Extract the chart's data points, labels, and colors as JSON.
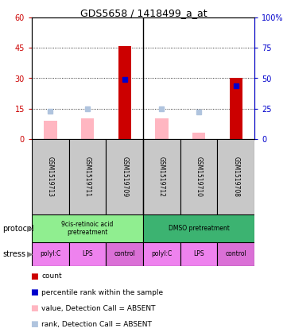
{
  "title": "GDS5658 / 1418499_a_at",
  "samples": [
    "GSM1519713",
    "GSM1519711",
    "GSM1519709",
    "GSM1519712",
    "GSM1519710",
    "GSM1519708"
  ],
  "red_bars": [
    0,
    0,
    46,
    0,
    0,
    30
  ],
  "pink_bars": [
    9,
    10,
    0,
    10,
    3,
    0
  ],
  "blue_squares_right": [
    23,
    25,
    49,
    25,
    22,
    44
  ],
  "show_dark_blue": [
    false,
    false,
    true,
    false,
    false,
    true
  ],
  "ylim_left": [
    0,
    60
  ],
  "ylim_right": [
    0,
    100
  ],
  "yticks_left": [
    0,
    15,
    30,
    45,
    60
  ],
  "yticks_right": [
    0,
    25,
    50,
    75,
    100
  ],
  "ytick_labels_left": [
    "0",
    "15",
    "30",
    "45",
    "60"
  ],
  "ytick_labels_right": [
    "0",
    "25",
    "50",
    "75",
    "100%"
  ],
  "bar_width": 0.35,
  "red_color": "#cc0000",
  "pink_color": "#ffb6c1",
  "blue_color": "#0000cc",
  "light_blue_color": "#b0c4de",
  "sample_box_color": "#c8c8c8",
  "left_axis_color": "#cc0000",
  "right_axis_color": "#0000cc",
  "protocol_labels": [
    "9cis-retinoic acid\npretreatment",
    "DMSO pretreatment"
  ],
  "protocol_colors": [
    "#90ee90",
    "#3cb371"
  ],
  "stress_labels": [
    "polyI:C",
    "LPS",
    "control",
    "polyI:C",
    "LPS",
    "control"
  ],
  "stress_colors": [
    "#ee82ee",
    "#ee82ee",
    "#da70d6",
    "#ee82ee",
    "#ee82ee",
    "#da70d6"
  ],
  "legend_items": [
    {
      "color": "#cc0000",
      "label": "count"
    },
    {
      "color": "#0000cc",
      "label": "percentile rank within the sample"
    },
    {
      "color": "#ffb6c1",
      "label": "value, Detection Call = ABSENT"
    },
    {
      "color": "#b0c4de",
      "label": "rank, Detection Call = ABSENT"
    }
  ]
}
